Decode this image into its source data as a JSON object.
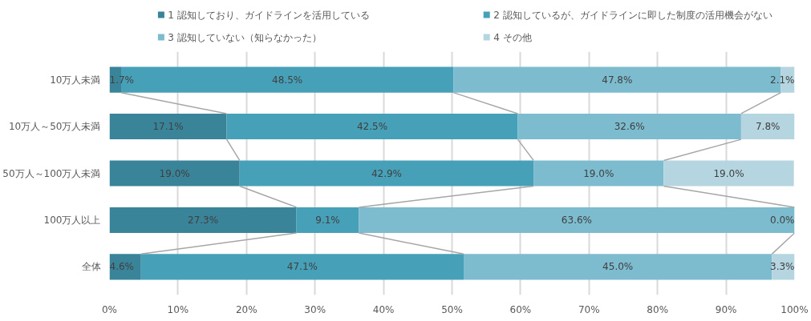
{
  "chart_data": {
    "type": "bar",
    "orientation": "horizontal",
    "stacked": true,
    "categories": [
      "10万人未満",
      "10万人～50万人未満",
      "50万人～100万人未満",
      "100万人以上",
      "全体"
    ],
    "series": [
      {
        "name": "1  認知しており、ガイドラインを活用している",
        "color": "#3a8499",
        "values": [
          1.7,
          17.1,
          19.0,
          27.3,
          4.6
        ],
        "value_labels": [
          "1.7%",
          "17.1%",
          "19.0%",
          "27.3%",
          "4.6%"
        ]
      },
      {
        "name": "2  認知しているが、ガイドラインに即した制度の活用機会がない",
        "color": "#46a0b8",
        "values": [
          48.5,
          42.5,
          42.9,
          9.1,
          47.1
        ],
        "value_labels": [
          "48.5%",
          "42.5%",
          "42.9%",
          "9.1%",
          "47.1%"
        ]
      },
      {
        "name": "3  認知していない（知らなかった）",
        "color": "#7dbbcf",
        "values": [
          47.8,
          32.6,
          19.0,
          63.6,
          45.0
        ],
        "value_labels": [
          "47.8%",
          "32.6%",
          "19.0%",
          "63.6%",
          "45.0%"
        ]
      },
      {
        "name": "4  その他",
        "color": "#b5d6e0",
        "values": [
          2.1,
          7.8,
          19.0,
          0.0,
          3.3
        ],
        "value_labels": [
          "2.1%",
          "7.8%",
          "19.0%",
          "0.0%",
          "3.3%"
        ]
      }
    ],
    "xlim": [
      0,
      100
    ],
    "xticks": [
      {
        "value": 0,
        "label": "0%"
      },
      {
        "value": 10,
        "label": "10%"
      },
      {
        "value": 20,
        "label": "20%"
      },
      {
        "value": 30,
        "label": "30%"
      },
      {
        "value": 40,
        "label": "40%"
      },
      {
        "value": 50,
        "label": "50%"
      },
      {
        "value": 60,
        "label": "60%"
      },
      {
        "value": 70,
        "label": "70%"
      },
      {
        "value": 80,
        "label": "80%"
      },
      {
        "value": 90,
        "label": "90%"
      },
      {
        "value": 100,
        "label": "100%"
      }
    ],
    "grid": "x",
    "legend": "top"
  }
}
